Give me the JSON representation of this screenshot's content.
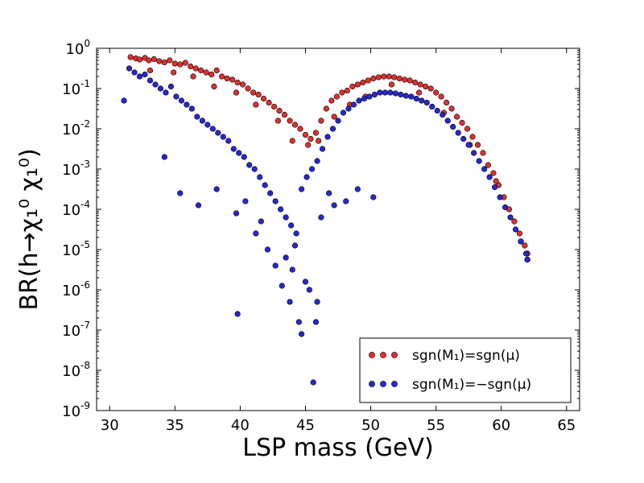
{
  "chart_data": {
    "type": "scatter",
    "title": "",
    "xlabel": "LSP mass (GeV)",
    "ylabel": "BR(h→χ₁⁰ χ₁⁰)",
    "xlim": [
      29,
      66
    ],
    "ylim_log10": [
      -9,
      0
    ],
    "yscale": "log",
    "x_ticks": [
      30,
      35,
      40,
      45,
      50,
      55,
      60,
      65
    ],
    "y_tick_exponents": [
      0,
      -1,
      -2,
      -3,
      -4,
      -5,
      -6,
      -7,
      -8,
      -9
    ],
    "y_tick_base": "10",
    "legend": {
      "position": "lower-right",
      "entries": [
        {
          "label": "sgn(M₁)=sgn(μ)",
          "series": 0
        },
        {
          "label": "sgn(M₁)=−sgn(μ)",
          "series": 1
        }
      ]
    },
    "series": [
      {
        "name": "sgn(M1)=sgn(mu)",
        "color": "#e03030",
        "points": [
          [
            31.6,
            -0.22
          ],
          [
            32.0,
            -0.25
          ],
          [
            32.3,
            -0.28
          ],
          [
            32.7,
            -0.24
          ],
          [
            33.0,
            -0.3
          ],
          [
            33.4,
            -0.27
          ],
          [
            33.8,
            -0.32
          ],
          [
            34.2,
            -0.35
          ],
          [
            34.6,
            -0.3
          ],
          [
            35.0,
            -0.38
          ],
          [
            35.4,
            -0.4
          ],
          [
            35.8,
            -0.36
          ],
          [
            36.2,
            -0.45
          ],
          [
            36.6,
            -0.5
          ],
          [
            37.0,
            -0.55
          ],
          [
            37.4,
            -0.6
          ],
          [
            37.8,
            -0.65
          ],
          [
            38.2,
            -0.55
          ],
          [
            38.6,
            -0.7
          ],
          [
            39.0,
            -0.75
          ],
          [
            39.4,
            -0.78
          ],
          [
            39.8,
            -0.85
          ],
          [
            40.2,
            -0.9
          ],
          [
            40.6,
            -1.0
          ],
          [
            41.0,
            -1.1
          ],
          [
            41.4,
            -1.15
          ],
          [
            41.8,
            -1.25
          ],
          [
            42.2,
            -1.35
          ],
          [
            42.6,
            -1.45
          ],
          [
            43.0,
            -1.55
          ],
          [
            43.4,
            -1.65
          ],
          [
            43.8,
            -1.8
          ],
          [
            44.2,
            -1.9
          ],
          [
            44.6,
            -2.0
          ],
          [
            45.0,
            -2.15
          ],
          [
            45.4,
            -2.25
          ],
          [
            45.8,
            -2.1
          ],
          [
            46.2,
            -1.8
          ],
          [
            46.6,
            -1.5
          ],
          [
            47.0,
            -1.3
          ],
          [
            47.4,
            -1.2
          ],
          [
            47.8,
            -1.1
          ],
          [
            48.2,
            -1.05
          ],
          [
            48.6,
            -0.95
          ],
          [
            49.0,
            -0.9
          ],
          [
            49.4,
            -0.85
          ],
          [
            49.8,
            -0.8
          ],
          [
            50.2,
            -0.75
          ],
          [
            50.6,
            -0.72
          ],
          [
            51.0,
            -0.7
          ],
          [
            51.4,
            -0.7
          ],
          [
            51.8,
            -0.72
          ],
          [
            52.2,
            -0.75
          ],
          [
            52.6,
            -0.78
          ],
          [
            53.0,
            -0.8
          ],
          [
            53.4,
            -0.85
          ],
          [
            53.8,
            -0.9
          ],
          [
            54.2,
            -0.95
          ],
          [
            54.6,
            -1.0
          ],
          [
            55.0,
            -1.1
          ],
          [
            55.4,
            -1.2
          ],
          [
            55.8,
            -1.35
          ],
          [
            56.2,
            -1.5
          ],
          [
            56.6,
            -1.7
          ],
          [
            57.0,
            -1.85
          ],
          [
            57.4,
            -2.0
          ],
          [
            57.8,
            -2.2
          ],
          [
            58.2,
            -2.4
          ],
          [
            58.6,
            -2.6
          ],
          [
            59.0,
            -2.9
          ],
          [
            59.4,
            -3.1
          ],
          [
            59.8,
            -3.4
          ],
          [
            60.2,
            -3.7
          ],
          [
            60.6,
            -4.0
          ],
          [
            61.0,
            -4.3
          ],
          [
            61.4,
            -4.6
          ],
          [
            61.8,
            -4.9
          ],
          [
            62.0,
            -5.1
          ],
          [
            33.1,
            -0.55
          ],
          [
            34.9,
            -0.6
          ],
          [
            36.4,
            -0.7
          ],
          [
            38.0,
            -0.95
          ],
          [
            39.7,
            -1.1
          ],
          [
            41.2,
            -1.4
          ],
          [
            42.9,
            -1.8
          ],
          [
            44.0,
            -2.3
          ],
          [
            45.2,
            -2.4
          ],
          [
            46.0,
            -2.3
          ],
          [
            47.2,
            -1.7
          ],
          [
            48.4,
            -1.4
          ],
          [
            49.6,
            -1.2
          ],
          [
            51.6,
            -0.9
          ],
          [
            53.7,
            -1.1
          ],
          [
            55.6,
            -1.6
          ],
          [
            57.6,
            -2.4
          ],
          [
            59.6,
            -3.3
          ],
          [
            61.5,
            -4.8
          ],
          [
            62.0,
            -5.25
          ]
        ]
      },
      {
        "name": "sgn(M1)=-sgn(mu)",
        "color": "#2828d0",
        "points": [
          [
            31.5,
            -0.5
          ],
          [
            31.9,
            -0.6
          ],
          [
            32.3,
            -0.7
          ],
          [
            32.7,
            -0.65
          ],
          [
            33.1,
            -0.8
          ],
          [
            33.5,
            -0.9
          ],
          [
            33.9,
            -1.0
          ],
          [
            34.3,
            -1.1
          ],
          [
            34.7,
            -0.95
          ],
          [
            35.1,
            -1.2
          ],
          [
            35.5,
            -1.3
          ],
          [
            35.9,
            -1.4
          ],
          [
            36.3,
            -1.5
          ],
          [
            36.7,
            -1.7
          ],
          [
            37.1,
            -1.8
          ],
          [
            37.5,
            -1.9
          ],
          [
            37.9,
            -2.0
          ],
          [
            38.3,
            -2.1
          ],
          [
            38.7,
            -2.2
          ],
          [
            39.1,
            -2.3
          ],
          [
            39.5,
            -2.5
          ],
          [
            39.9,
            -2.6
          ],
          [
            40.3,
            -2.7
          ],
          [
            40.7,
            -2.9
          ],
          [
            41.1,
            -3.0
          ],
          [
            41.5,
            -3.2
          ],
          [
            41.9,
            -3.4
          ],
          [
            42.3,
            -3.6
          ],
          [
            42.7,
            -3.8
          ],
          [
            43.1,
            -4.0
          ],
          [
            43.5,
            -4.2
          ],
          [
            43.9,
            -4.4
          ],
          [
            44.3,
            -4.6
          ],
          [
            44.7,
            -3.5
          ],
          [
            45.1,
            -3.2
          ],
          [
            45.5,
            -3.0
          ],
          [
            45.9,
            -2.8
          ],
          [
            46.3,
            -2.5
          ],
          [
            46.7,
            -2.2
          ],
          [
            47.1,
            -2.0
          ],
          [
            47.5,
            -1.8
          ],
          [
            47.9,
            -1.6
          ],
          [
            48.3,
            -1.5
          ],
          [
            48.7,
            -1.4
          ],
          [
            49.1,
            -1.3
          ],
          [
            49.5,
            -1.25
          ],
          [
            49.9,
            -1.2
          ],
          [
            50.3,
            -1.15
          ],
          [
            50.7,
            -1.1
          ],
          [
            51.1,
            -1.1
          ],
          [
            51.5,
            -1.1
          ],
          [
            51.9,
            -1.12
          ],
          [
            52.3,
            -1.15
          ],
          [
            52.7,
            -1.18
          ],
          [
            53.1,
            -1.2
          ],
          [
            53.5,
            -1.25
          ],
          [
            53.9,
            -1.3
          ],
          [
            54.3,
            -1.35
          ],
          [
            54.7,
            -1.45
          ],
          [
            55.1,
            -1.55
          ],
          [
            55.5,
            -1.65
          ],
          [
            55.9,
            -1.8
          ],
          [
            56.3,
            -1.95
          ],
          [
            56.7,
            -2.1
          ],
          [
            57.1,
            -2.25
          ],
          [
            57.5,
            -2.4
          ],
          [
            57.9,
            -2.6
          ],
          [
            58.3,
            -2.8
          ],
          [
            58.7,
            -3.0
          ],
          [
            59.1,
            -3.2
          ],
          [
            59.5,
            -3.45
          ],
          [
            59.9,
            -3.7
          ],
          [
            60.3,
            -3.95
          ],
          [
            60.7,
            -4.2
          ],
          [
            61.1,
            -4.5
          ],
          [
            61.5,
            -4.8
          ],
          [
            61.9,
            -5.1
          ],
          [
            62.0,
            -5.25
          ],
          [
            31.1,
            -1.3
          ],
          [
            34.2,
            -2.7
          ],
          [
            35.4,
            -3.6
          ],
          [
            36.8,
            -3.9
          ],
          [
            38.2,
            -3.5
          ],
          [
            39.7,
            -4.1
          ],
          [
            40.4,
            -3.8
          ],
          [
            41.2,
            -4.6
          ],
          [
            42.1,
            -5.0
          ],
          [
            42.7,
            -5.4
          ],
          [
            43.2,
            -5.9
          ],
          [
            43.8,
            -6.3
          ],
          [
            44.0,
            -5.5
          ],
          [
            44.5,
            -6.8
          ],
          [
            44.7,
            -7.1
          ],
          [
            45.0,
            -5.8
          ],
          [
            45.3,
            -6.0
          ],
          [
            45.6,
            -8.3
          ],
          [
            45.9,
            -6.3
          ],
          [
            46.2,
            -4.2
          ],
          [
            47.2,
            -3.9
          ],
          [
            48.1,
            -3.8
          ],
          [
            49.0,
            -3.5
          ],
          [
            50.2,
            -3.7
          ],
          [
            39.8,
            -6.6
          ],
          [
            43.5,
            -5.2
          ],
          [
            44.2,
            -4.9
          ],
          [
            45.8,
            -6.8
          ],
          [
            41.6,
            -4.3
          ],
          [
            46.8,
            -3.6
          ]
        ]
      }
    ]
  }
}
